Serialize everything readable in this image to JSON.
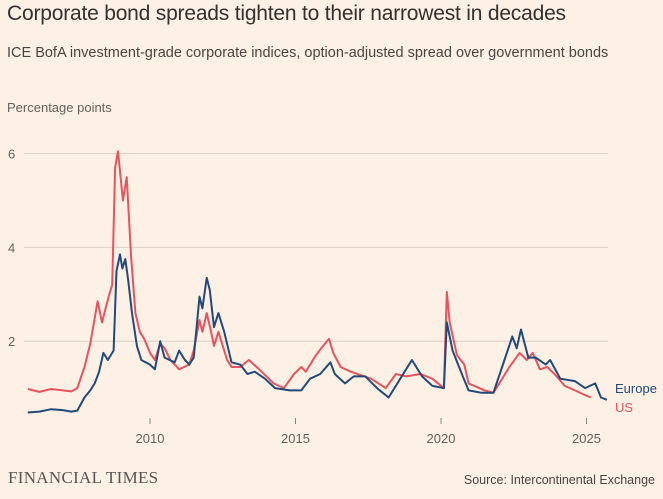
{
  "header": {
    "title": "Corporate bond spreads tighten to their narrowest in decades",
    "subtitle": "ICE BofA investment-grade corporate indices, option-adjusted spread over government bonds"
  },
  "footer": {
    "logo": "FINANCIAL TIMES",
    "source": "Source: Intercontinental Exchange"
  },
  "chart_data": {
    "type": "line",
    "title": "Corporate bond spreads tighten to their narrowest in decades",
    "ylabel": "Percentage points",
    "xlabel": "",
    "ylim": [
      0,
      6.3
    ],
    "xlim": [
      2005.8,
      2025.8
    ],
    "yticks": [
      2,
      4,
      6
    ],
    "xticks": [
      2010,
      2015,
      2020,
      2025
    ],
    "grid": true,
    "legend_placement": "right (direct labels at line ends)",
    "colors": {
      "Europe": "#22497b",
      "US": "#e8535f"
    },
    "series": [
      {
        "name": "Europe",
        "points": [
          [
            2005.8,
            0.48
          ],
          [
            2006.2,
            0.5
          ],
          [
            2006.6,
            0.55
          ],
          [
            2007.0,
            0.53
          ],
          [
            2007.3,
            0.5
          ],
          [
            2007.5,
            0.52
          ],
          [
            2007.75,
            0.8
          ],
          [
            2007.95,
            0.95
          ],
          [
            2008.1,
            1.1
          ],
          [
            2008.25,
            1.35
          ],
          [
            2008.4,
            1.75
          ],
          [
            2008.55,
            1.6
          ],
          [
            2008.75,
            1.8
          ],
          [
            2008.85,
            3.5
          ],
          [
            2008.97,
            3.85
          ],
          [
            2009.05,
            3.55
          ],
          [
            2009.15,
            3.75
          ],
          [
            2009.25,
            3.3
          ],
          [
            2009.38,
            2.6
          ],
          [
            2009.55,
            1.9
          ],
          [
            2009.7,
            1.6
          ],
          [
            2010.0,
            1.5
          ],
          [
            2010.17,
            1.4
          ],
          [
            2010.35,
            2.0
          ],
          [
            2010.5,
            1.65
          ],
          [
            2010.85,
            1.55
          ],
          [
            2011.0,
            1.8
          ],
          [
            2011.2,
            1.6
          ],
          [
            2011.35,
            1.5
          ],
          [
            2011.5,
            1.65
          ],
          [
            2011.7,
            2.95
          ],
          [
            2011.8,
            2.7
          ],
          [
            2011.95,
            3.35
          ],
          [
            2012.05,
            3.1
          ],
          [
            2012.2,
            2.3
          ],
          [
            2012.35,
            2.6
          ],
          [
            2012.55,
            2.2
          ],
          [
            2012.8,
            1.55
          ],
          [
            2013.1,
            1.5
          ],
          [
            2013.35,
            1.3
          ],
          [
            2013.6,
            1.35
          ],
          [
            2013.95,
            1.2
          ],
          [
            2014.3,
            1.0
          ],
          [
            2014.8,
            0.95
          ],
          [
            2015.2,
            0.95
          ],
          [
            2015.5,
            1.2
          ],
          [
            2015.85,
            1.3
          ],
          [
            2016.2,
            1.55
          ],
          [
            2016.35,
            1.3
          ],
          [
            2016.7,
            1.1
          ],
          [
            2017.0,
            1.25
          ],
          [
            2017.4,
            1.25
          ],
          [
            2017.8,
            1.0
          ],
          [
            2018.2,
            0.8
          ],
          [
            2018.6,
            1.2
          ],
          [
            2019.0,
            1.6
          ],
          [
            2019.35,
            1.25
          ],
          [
            2019.7,
            1.05
          ],
          [
            2020.1,
            1.0
          ],
          [
            2020.2,
            2.4
          ],
          [
            2020.4,
            1.8
          ],
          [
            2020.75,
            1.25
          ],
          [
            2020.95,
            0.95
          ],
          [
            2021.4,
            0.9
          ],
          [
            2021.8,
            0.9
          ],
          [
            2022.1,
            1.45
          ],
          [
            2022.45,
            2.1
          ],
          [
            2022.6,
            1.85
          ],
          [
            2022.75,
            2.25
          ],
          [
            2023.0,
            1.65
          ],
          [
            2023.25,
            1.65
          ],
          [
            2023.6,
            1.5
          ],
          [
            2023.75,
            1.6
          ],
          [
            2024.1,
            1.2
          ],
          [
            2024.6,
            1.15
          ],
          [
            2024.95,
            1.0
          ],
          [
            2025.3,
            1.1
          ],
          [
            2025.5,
            0.8
          ],
          [
            2025.7,
            0.75
          ]
        ]
      },
      {
        "name": "US",
        "points": [
          [
            2005.8,
            0.98
          ],
          [
            2006.2,
            0.92
          ],
          [
            2006.6,
            0.98
          ],
          [
            2007.0,
            0.95
          ],
          [
            2007.3,
            0.93
          ],
          [
            2007.5,
            1.0
          ],
          [
            2007.75,
            1.45
          ],
          [
            2007.95,
            1.95
          ],
          [
            2008.2,
            2.85
          ],
          [
            2008.35,
            2.4
          ],
          [
            2008.6,
            3.0
          ],
          [
            2008.7,
            3.2
          ],
          [
            2008.8,
            5.7
          ],
          [
            2008.9,
            6.05
          ],
          [
            2009.07,
            5.0
          ],
          [
            2009.2,
            5.5
          ],
          [
            2009.35,
            3.8
          ],
          [
            2009.5,
            2.6
          ],
          [
            2009.65,
            2.2
          ],
          [
            2009.8,
            2.05
          ],
          [
            2010.0,
            1.75
          ],
          [
            2010.17,
            1.6
          ],
          [
            2010.35,
            1.95
          ],
          [
            2010.5,
            1.85
          ],
          [
            2010.7,
            1.6
          ],
          [
            2011.0,
            1.4
          ],
          [
            2011.35,
            1.5
          ],
          [
            2011.5,
            1.8
          ],
          [
            2011.7,
            2.45
          ],
          [
            2011.8,
            2.2
          ],
          [
            2011.95,
            2.6
          ],
          [
            2012.1,
            2.2
          ],
          [
            2012.2,
            1.9
          ],
          [
            2012.35,
            2.2
          ],
          [
            2012.65,
            1.6
          ],
          [
            2012.8,
            1.45
          ],
          [
            2013.1,
            1.45
          ],
          [
            2013.4,
            1.6
          ],
          [
            2013.75,
            1.4
          ],
          [
            2014.25,
            1.1
          ],
          [
            2014.6,
            1.0
          ],
          [
            2014.95,
            1.3
          ],
          [
            2015.2,
            1.45
          ],
          [
            2015.35,
            1.35
          ],
          [
            2015.7,
            1.7
          ],
          [
            2015.95,
            1.9
          ],
          [
            2016.15,
            2.05
          ],
          [
            2016.3,
            1.75
          ],
          [
            2016.55,
            1.45
          ],
          [
            2016.9,
            1.35
          ],
          [
            2017.6,
            1.2
          ],
          [
            2018.1,
            1.0
          ],
          [
            2018.45,
            1.3
          ],
          [
            2018.8,
            1.25
          ],
          [
            2019.3,
            1.3
          ],
          [
            2019.7,
            1.2
          ],
          [
            2020.1,
            1.0
          ],
          [
            2020.2,
            3.05
          ],
          [
            2020.3,
            2.4
          ],
          [
            2020.55,
            1.7
          ],
          [
            2020.8,
            1.5
          ],
          [
            2020.95,
            1.1
          ],
          [
            2021.5,
            0.95
          ],
          [
            2021.8,
            0.9
          ],
          [
            2022.15,
            1.25
          ],
          [
            2022.35,
            1.45
          ],
          [
            2022.7,
            1.75
          ],
          [
            2022.95,
            1.6
          ],
          [
            2023.15,
            1.75
          ],
          [
            2023.4,
            1.4
          ],
          [
            2023.65,
            1.45
          ],
          [
            2023.9,
            1.3
          ],
          [
            2024.25,
            1.05
          ],
          [
            2024.6,
            0.95
          ],
          [
            2024.95,
            0.85
          ],
          [
            2025.15,
            0.8
          ]
        ]
      }
    ]
  }
}
